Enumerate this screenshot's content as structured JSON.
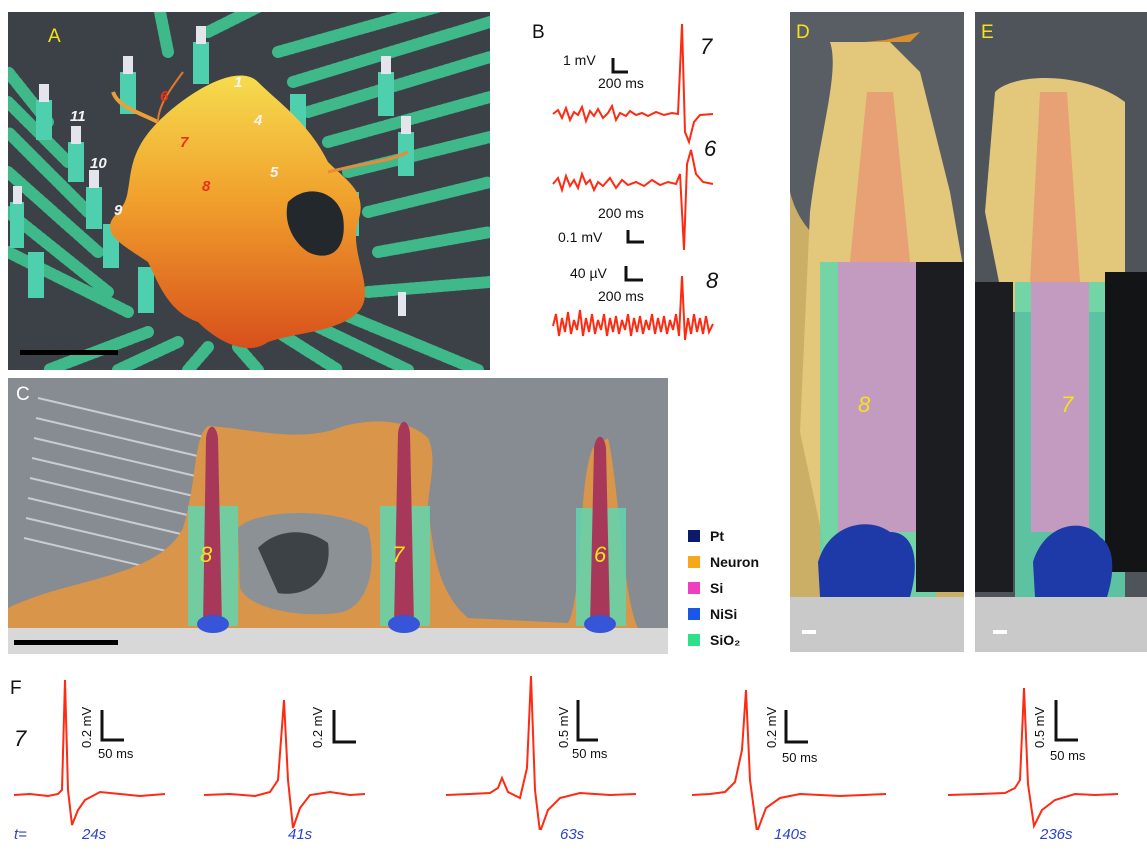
{
  "panels": {
    "a": {
      "label": "A",
      "electrodes": {
        "white": [
          "1",
          "4",
          "5",
          "11",
          "10",
          "9"
        ],
        "red": [
          "6",
          "7",
          "8"
        ]
      }
    },
    "b": {
      "label": "B",
      "traces": [
        {
          "id": "7",
          "scale_v": "1 mV",
          "scale_t": "200 ms"
        },
        {
          "id": "6",
          "scale_v": "0.1 mV",
          "scale_t": "200 ms"
        },
        {
          "id": "8",
          "scale_v": "40 µV",
          "scale_t": "200 ms"
        }
      ]
    },
    "c": {
      "label": "C",
      "pillars": [
        "8",
        "7",
        "6"
      ]
    },
    "d": {
      "label": "D",
      "pillar": "8"
    },
    "e": {
      "label": "E",
      "pillar": "7"
    },
    "f": {
      "label": "F",
      "electrode": "7",
      "t_prefix": "t=",
      "traces": [
        {
          "time": "24s",
          "scale_v": "0.2 mV",
          "scale_t": "50 ms"
        },
        {
          "time": "41s",
          "scale_v": "0.2 mV",
          "scale_t": ""
        },
        {
          "time": "63s",
          "scale_v": "0.5 mV",
          "scale_t": "50 ms"
        },
        {
          "time": "140s",
          "scale_v": "0.2 mV",
          "scale_t": "50 ms"
        },
        {
          "time": "236s",
          "scale_v": "0.5 mV",
          "scale_t": "50 ms"
        }
      ]
    }
  },
  "legend": [
    {
      "name": "Pt",
      "color": "#0c1a6b"
    },
    {
      "name": "Neuron",
      "color": "#f5a81c"
    },
    {
      "name": "Si",
      "color": "#ee3fc0"
    },
    {
      "name": "NiSi",
      "color": "#1b57e6"
    },
    {
      "name": "SiO₂",
      "color": "#2ee08a"
    }
  ],
  "colors": {
    "trace": "#ff2a12",
    "neuron": "#e9b04a",
    "oxide": "#4fd6a3",
    "pillar": "#a8385a",
    "substrate": "#3a3f44"
  }
}
